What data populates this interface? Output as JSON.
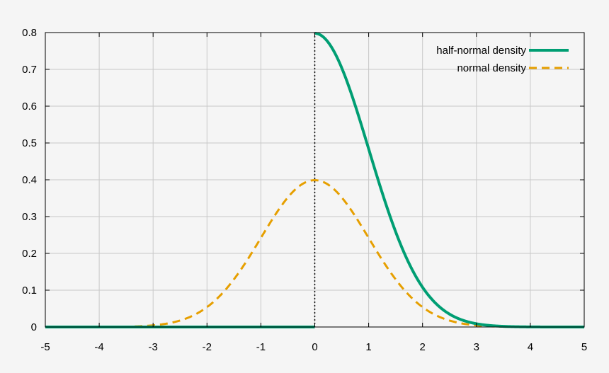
{
  "chart_data": {
    "type": "line",
    "title": "",
    "xlabel": "",
    "ylabel": "",
    "xlim": [
      -5,
      5
    ],
    "ylim": [
      0,
      0.8
    ],
    "x_ticks": [
      "-5",
      "-4",
      "-3",
      "-2",
      "-1",
      "0",
      "1",
      "2",
      "3",
      "4",
      "5"
    ],
    "y_ticks": [
      "0",
      "0.1",
      "0.2",
      "0.3",
      "0.4",
      "0.5",
      "0.6",
      "0.7",
      "0.8"
    ],
    "grid": true,
    "legend_position": "top-right",
    "reference_line": {
      "x": 0,
      "style": "dotted",
      "color": "#000000"
    },
    "series": [
      {
        "name": "half-normal density",
        "color": "#009e73",
        "style": "solid",
        "x": [
          -5,
          -4,
          -3,
          -2,
          -1,
          0,
          0.25,
          0.5,
          0.75,
          1,
          1.25,
          1.5,
          1.75,
          2,
          2.5,
          3,
          3.5,
          4,
          5
        ],
        "y": [
          0,
          0,
          0,
          0,
          0,
          0.798,
          0.773,
          0.704,
          0.602,
          0.484,
          0.365,
          0.259,
          0.172,
          0.108,
          0.035,
          0.009,
          0.002,
          0.0003,
          0
        ]
      },
      {
        "name": "normal density",
        "color": "#e69f00",
        "style": "dashed",
        "x": [
          -5,
          -4,
          -3.5,
          -3,
          -2.5,
          -2,
          -1.5,
          -1,
          -0.5,
          0,
          0.5,
          1,
          1.5,
          2,
          2.5,
          3,
          3.5,
          4,
          5
        ],
        "y": [
          0,
          0.0001,
          0.001,
          0.004,
          0.018,
          0.054,
          0.13,
          0.242,
          0.352,
          0.399,
          0.352,
          0.242,
          0.13,
          0.054,
          0.018,
          0.004,
          0.001,
          0.0001,
          0
        ]
      }
    ]
  }
}
